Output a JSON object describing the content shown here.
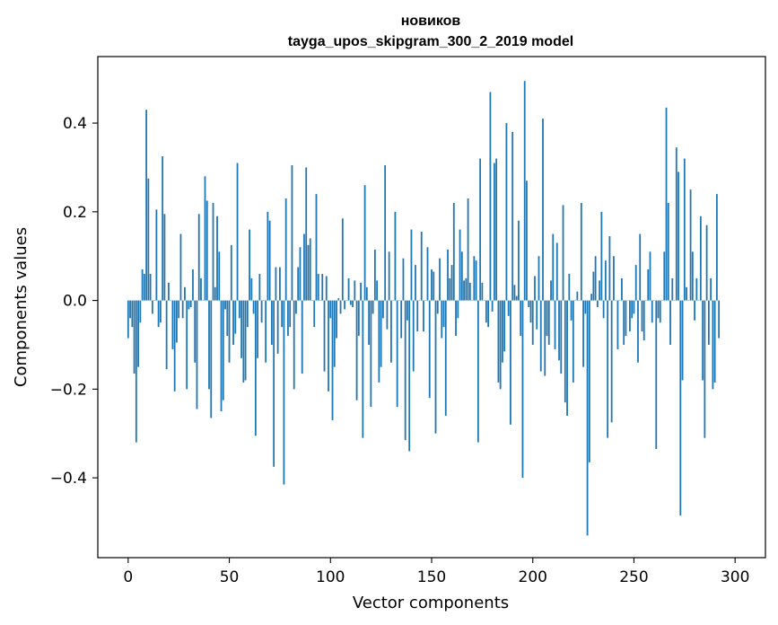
{
  "chart_data": {
    "type": "bar",
    "title": "новиков",
    "subtitle": "tayga_upos_skipgram_300_2_2019 model",
    "xlabel": "Vector components",
    "ylabel": "Components values",
    "xlim": [
      -15,
      315
    ],
    "ylim": [
      -0.58,
      0.55
    ],
    "xticks": [
      0,
      50,
      100,
      150,
      200,
      250,
      300
    ],
    "xtick_labels": [
      "0",
      "50",
      "100",
      "150",
      "200",
      "250",
      "300"
    ],
    "yticks": [
      -0.4,
      -0.2,
      0.0,
      0.2,
      0.4
    ],
    "ytick_labels": [
      "−0.4",
      "−0.2",
      "0.0",
      "0.2",
      "0.4"
    ],
    "grid": false,
    "bar_color": "#1f77b4",
    "x_start": 0,
    "values": [
      -0.085,
      -0.04,
      -0.06,
      -0.165,
      -0.32,
      -0.15,
      -0.05,
      0.07,
      0.06,
      0.43,
      0.275,
      0.06,
      -0.03,
      0.0,
      0.205,
      -0.06,
      -0.05,
      0.325,
      0.195,
      -0.155,
      0.04,
      0.0,
      -0.11,
      -0.205,
      -0.095,
      -0.04,
      0.15,
      -0.04,
      0.03,
      -0.2,
      -0.02,
      -0.015,
      0.07,
      -0.14,
      -0.245,
      0.195,
      0.05,
      0.0,
      0.28,
      0.225,
      -0.2,
      -0.265,
      0.22,
      0.03,
      0.19,
      0.11,
      -0.25,
      -0.225,
      -0.02,
      -0.08,
      -0.14,
      0.125,
      -0.1,
      -0.075,
      0.31,
      -0.04,
      -0.13,
      -0.185,
      -0.18,
      -0.06,
      0.16,
      0.05,
      -0.03,
      -0.305,
      -0.13,
      0.06,
      -0.05,
      0.0,
      -0.14,
      0.2,
      0.18,
      -0.1,
      -0.375,
      0.075,
      -0.12,
      0.075,
      -0.06,
      -0.415,
      0.23,
      -0.08,
      -0.06,
      0.305,
      -0.2,
      -0.03,
      0.075,
      0.12,
      -0.165,
      0.15,
      0.3,
      0.125,
      0.14,
      0.0,
      -0.06,
      0.24,
      0.06,
      0.0,
      0.06,
      -0.16,
      0.055,
      -0.205,
      -0.04,
      -0.27,
      -0.15,
      -0.085,
      0.005,
      -0.03,
      0.185,
      -0.02,
      0.0,
      0.05,
      -0.01,
      -0.015,
      0.045,
      -0.225,
      -0.08,
      0.04,
      -0.31,
      0.26,
      0.03,
      -0.1,
      -0.24,
      -0.03,
      0.115,
      0.045,
      -0.185,
      -0.15,
      -0.04,
      0.305,
      -0.065,
      0.11,
      -0.14,
      0.0,
      0.2,
      -0.24,
      0.0,
      -0.085,
      0.095,
      -0.315,
      -0.045,
      -0.34,
      0.16,
      -0.16,
      0.08,
      -0.07,
      0.0,
      0.155,
      -0.07,
      0.0,
      0.12,
      -0.22,
      0.07,
      0.065,
      -0.3,
      -0.03,
      0.095,
      -0.085,
      -0.06,
      -0.26,
      0.115,
      0.05,
      0.08,
      0.22,
      -0.08,
      -0.04,
      0.16,
      0.11,
      0.045,
      0.05,
      0.23,
      0.04,
      0.0,
      0.1,
      0.09,
      -0.32,
      0.32,
      0.04,
      0.0,
      -0.05,
      -0.06,
      0.47,
      -0.025,
      0.31,
      0.32,
      -0.185,
      -0.2,
      -0.14,
      -0.115,
      0.4,
      -0.035,
      -0.28,
      0.38,
      0.035,
      0.01,
      0.18,
      -0.08,
      -0.4,
      0.495,
      0.27,
      -0.015,
      -0.05,
      -0.1,
      0.055,
      -0.065,
      0.1,
      -0.16,
      0.41,
      -0.17,
      -0.08,
      -0.1,
      0.045,
      0.15,
      -0.11,
      0.13,
      -0.135,
      -0.165,
      0.215,
      -0.23,
      -0.26,
      0.06,
      -0.045,
      -0.185,
      0.0,
      0.02,
      0.0,
      0.22,
      -0.15,
      -0.03,
      -0.53,
      -0.365,
      0.015,
      0.065,
      0.1,
      -0.015,
      0.045,
      0.2,
      -0.04,
      0.09,
      -0.31,
      0.145,
      -0.275,
      0.1,
      0.0,
      -0.11,
      0.0,
      0.05,
      -0.1,
      -0.08,
      0.0,
      -0.07,
      -0.04,
      -0.03,
      0.08,
      -0.14,
      0.15,
      -0.07,
      -0.09,
      0.0,
      0.07,
      0.11,
      -0.05,
      0.0,
      -0.335,
      -0.04,
      -0.05,
      0.0,
      0.11,
      0.435,
      0.22,
      -0.1,
      0.05,
      0.0,
      0.345,
      0.29,
      -0.485,
      -0.18,
      0.32,
      0.03,
      0.0,
      0.25,
      0.11,
      -0.045,
      0.05,
      0.0,
      0.19,
      -0.18,
      -0.31,
      0.17,
      -0.1,
      0.05,
      -0.2,
      -0.185,
      0.24,
      -0.085
    ]
  }
}
